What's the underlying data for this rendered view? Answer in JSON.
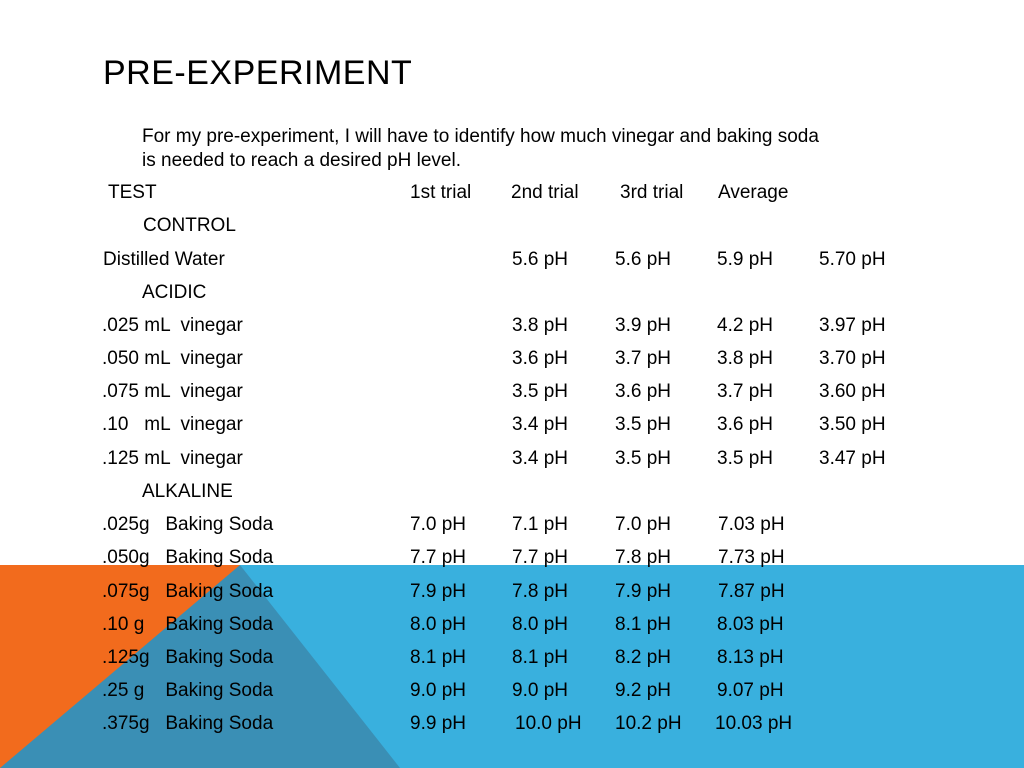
{
  "slide": {
    "title": "PRE-EXPERIMENT",
    "intro_line1": "For my pre-experiment, I will have to identify how much vinegar and baking soda",
    "intro_line2": "is  needed to reach a desired pH level."
  },
  "table": {
    "headers": [
      "TEST",
      "1st trial",
      "2nd trial",
      "3rd trial",
      "Average"
    ],
    "sections": [
      {
        "label": "CONTROL",
        "rows": [
          {
            "name": "Distilled Water",
            "values": [
              "5.6 pH",
              "5.6 pH",
              "5.9 pH",
              "5.70 pH"
            ]
          }
        ]
      },
      {
        "label": "ACIDIC",
        "rows": [
          {
            "name": ".025 mL  vinegar",
            "values": [
              "3.8 pH",
              "3.9 pH",
              "4.2 pH",
              "3.97 pH"
            ]
          },
          {
            "name": ".050 mL  vinegar",
            "values": [
              "3.6 pH",
              "3.7 pH",
              "3.8 pH",
              "3.70 pH"
            ]
          },
          {
            "name": ".075 mL  vinegar",
            "values": [
              "3.5 pH",
              "3.6 pH",
              "3.7 pH",
              "3.60 pH"
            ]
          },
          {
            "name": ".10   mL  vinegar",
            "values": [
              "3.4 pH",
              "3.5 pH",
              "3.6 pH",
              "3.50 pH"
            ]
          },
          {
            "name": ".125 mL  vinegar",
            "values": [
              "3.4 pH",
              "3.5 pH",
              "3.5 pH",
              "3.47 pH"
            ]
          }
        ]
      },
      {
        "label": "ALKALINE",
        "rows": [
          {
            "name": ".025g   Baking Soda",
            "values": [
              "7.0 pH",
              "7.1 pH",
              "7.0 pH",
              "7.03 pH"
            ]
          },
          {
            "name": ".050g   Baking Soda",
            "values": [
              "7.7 pH",
              "7.7 pH",
              "7.8 pH",
              "7.73 pH"
            ]
          },
          {
            "name": ".075g   Baking Soda",
            "values": [
              "7.9 pH",
              "7.8 pH",
              "7.9 pH",
              "7.87 pH"
            ]
          },
          {
            "name": ".10 g    Baking Soda",
            "values": [
              "8.0 pH",
              "8.0 pH",
              "8.1 pH",
              "8.03 pH"
            ]
          },
          {
            "name": ".125g   Baking Soda",
            "values": [
              "8.1 pH",
              "8.1 pH",
              "8.2 pH",
              "8.13 pH"
            ]
          },
          {
            "name": ".25 g    Baking Soda",
            "values": [
              "9.0 pH",
              "9.0 pH",
              "9.2 pH",
              "9.07 pH"
            ]
          },
          {
            "name": ".375g   Baking Soda",
            "values": [
              "9.9 pH",
              "10.0 pH",
              "10.2 pH",
              "10.03 pH"
            ]
          }
        ]
      }
    ]
  },
  "colors": {
    "orange": "#F26B1D",
    "blue": "#39B0DE",
    "overlap": "#3A8FB5",
    "text": "#000000"
  }
}
